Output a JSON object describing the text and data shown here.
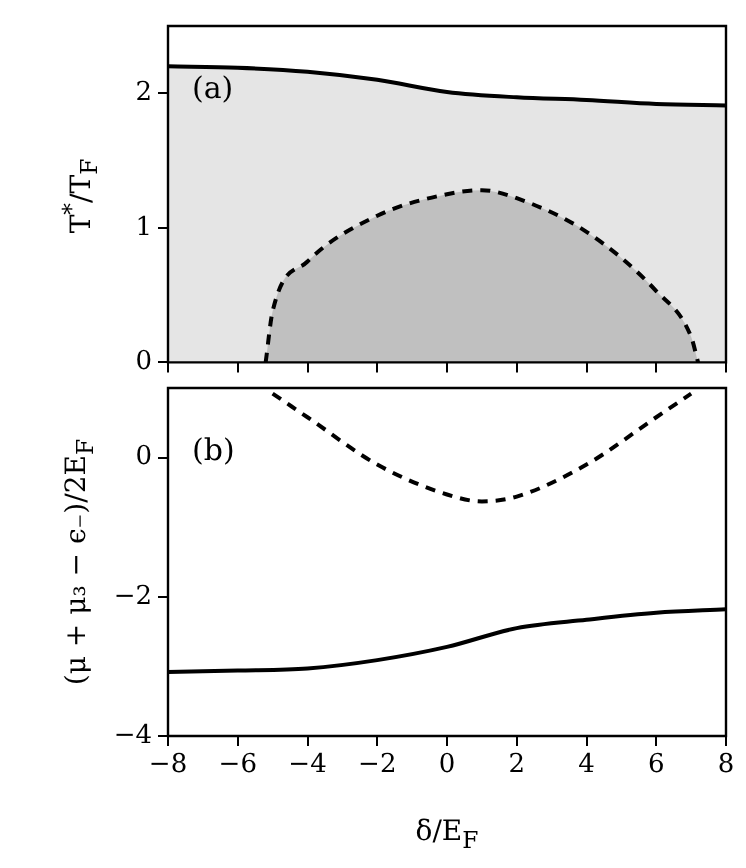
{
  "chart_data": [
    {
      "type": "area",
      "ylabel": "T$^{*}$/T$_{F}$",
      "annotations": [
        "(a)"
      ],
      "xlim": [
        -8,
        8
      ],
      "xticks": [
        -8,
        -6,
        -4,
        -2,
        0,
        2,
        4,
        6,
        8
      ],
      "ylim": [
        0,
        2.5
      ],
      "yticks": [
        0,
        1,
        2
      ],
      "tick_labels": "y",
      "grid": false,
      "legend": false,
      "series": [
        {
          "color": "#e5e5e5",
          "line_style": "solid",
          "x": [
            -8,
            -6,
            -4,
            -2,
            0,
            2,
            4,
            6,
            8
          ],
          "values": [
            2.2,
            2.19,
            2.16,
            2.1,
            2.01,
            1.97,
            1.95,
            1.92,
            1.91
          ]
        },
        {
          "color": "#c0c0c0",
          "line_style": "dashed",
          "x": [
            -5.2,
            -5,
            -4,
            -2,
            0,
            1,
            2,
            4,
            6,
            7,
            7.2
          ],
          "values": [
            0,
            0.38,
            0.75,
            1.09,
            1.25,
            1.28,
            1.22,
            0.97,
            0.53,
            0.19,
            0
          ]
        }
      ]
    },
    {
      "type": "line",
      "xlabel": "δ/E$_{F}$",
      "ylabel": "(μ + μ₃ − ϵ₋)/2E$_{F}$",
      "annotations": [
        "(b)"
      ],
      "xlim": [
        -8,
        8
      ],
      "xticks": [
        -8,
        -6,
        -4,
        -2,
        0,
        2,
        4,
        6,
        8
      ],
      "ylim": [
        -4,
        1
      ],
      "yticks": [
        -4,
        -2,
        0
      ],
      "grid": false,
      "legend": false,
      "series": [
        {
          "color": "#000000",
          "line_style": "solid",
          "x": [
            -8,
            -6,
            -4,
            -2,
            0,
            2,
            4,
            6,
            8
          ],
          "values": [
            -3.08,
            -3.06,
            -3.03,
            -2.91,
            -2.72,
            -2.45,
            -2.33,
            -2.23,
            -2.18
          ]
        },
        {
          "color": "#000000",
          "line_style": "dashed",
          "x": [
            -5,
            -4,
            -2,
            0,
            1,
            2,
            4,
            6,
            7
          ],
          "values": [
            0.92,
            0.58,
            -0.1,
            -0.53,
            -0.63,
            -0.56,
            -0.1,
            0.58,
            0.92
          ]
        }
      ]
    }
  ]
}
